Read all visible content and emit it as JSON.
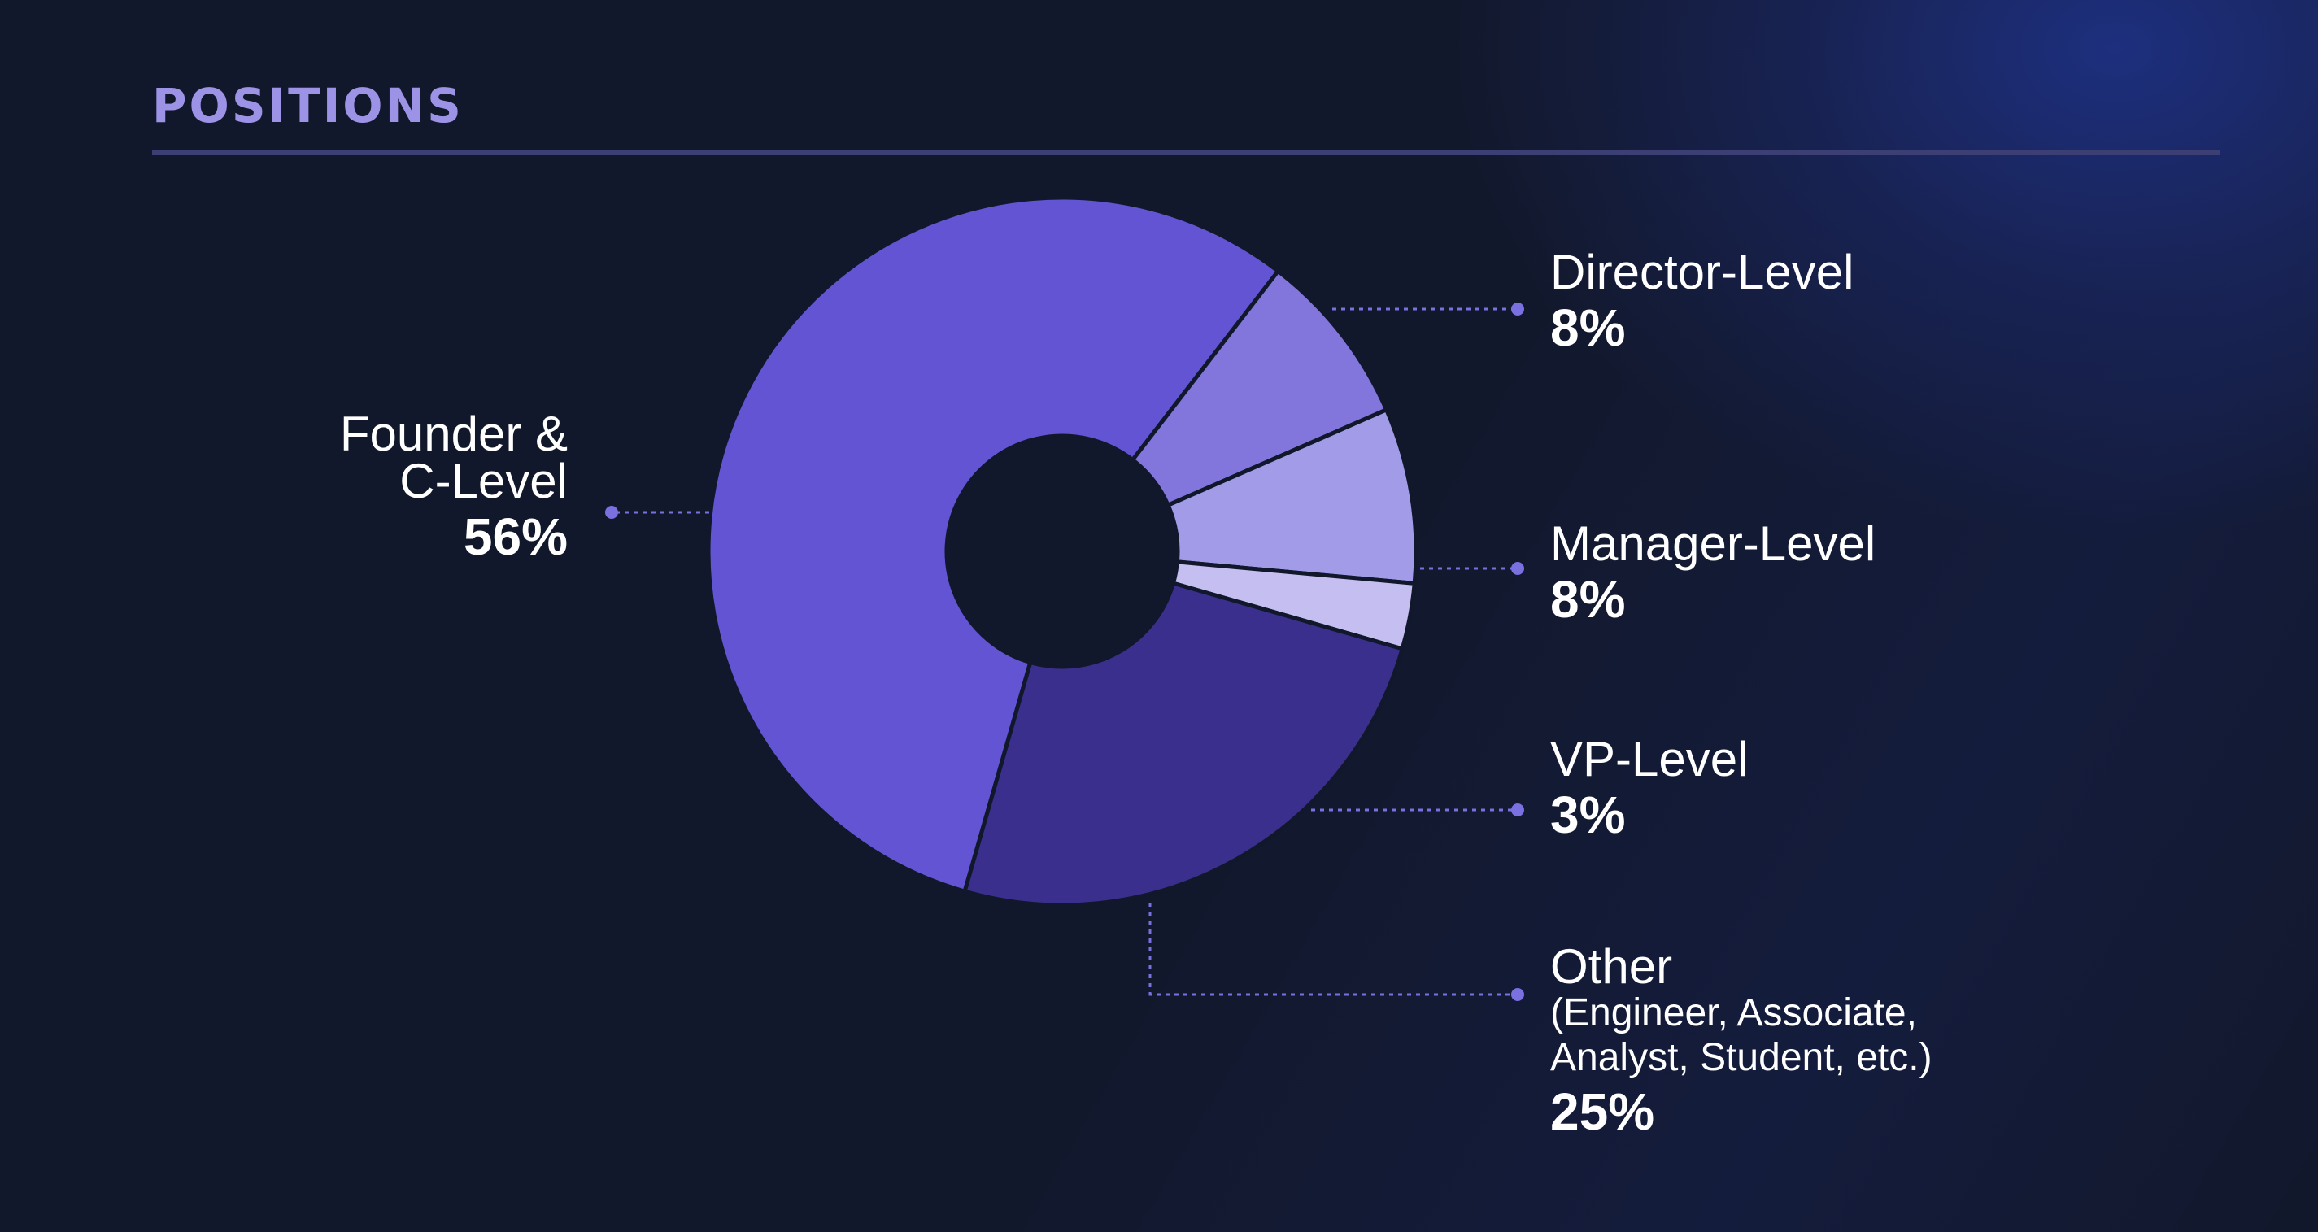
{
  "title": "POSITIONS",
  "colors": {
    "background": "#12182b",
    "title": "#9d93e6",
    "leader": "#7a70e0"
  },
  "chart_data": {
    "type": "pie",
    "variant": "donut",
    "title": "POSITIONS",
    "unit": "%",
    "slices": [
      {
        "label": "Founder & C-Level",
        "value": 56,
        "value_label": "56%",
        "color": "#6254d2"
      },
      {
        "label": "Director-Level",
        "value": 8,
        "value_label": "8%",
        "color": "#8276dc"
      },
      {
        "label": "Manager-Level",
        "value": 8,
        "value_label": "8%",
        "color": "#a29be8"
      },
      {
        "label": "VP-Level",
        "value": 3,
        "value_label": "3%",
        "color": "#c4bff0"
      },
      {
        "label": "Other",
        "sublabel": "(Engineer, Associate, Analyst, Student, etc.)",
        "value": 25,
        "value_label": "25%",
        "color": "#3a2f8c"
      }
    ]
  },
  "labels": {
    "founder": {
      "line1": "Founder &",
      "line2": "C-Level",
      "value": "56%"
    },
    "director": {
      "name": "Director-Level",
      "value": "8%"
    },
    "manager": {
      "name": "Manager-Level",
      "value": "8%"
    },
    "vp": {
      "name": "VP-Level",
      "value": "3%"
    },
    "other": {
      "name": "Other",
      "sub1": "(Engineer, Associate,",
      "sub2": "Analyst, Student, etc.)",
      "value": "25%"
    }
  }
}
